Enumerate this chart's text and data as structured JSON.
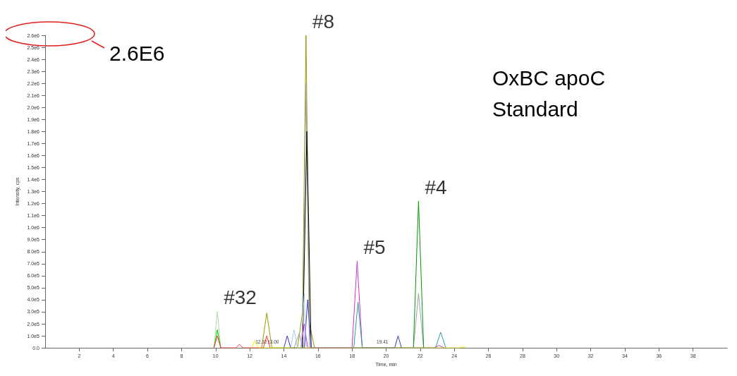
{
  "chart_data": {
    "type": "line",
    "xlabel": "Time, min",
    "ylabel": "Intensity, cps",
    "xlim": [
      0,
      40
    ],
    "xticks": [
      2,
      4,
      6,
      8,
      10,
      12,
      14,
      16,
      18,
      20,
      22,
      24,
      26,
      28,
      30,
      32,
      34,
      36,
      38
    ],
    "ylim": [
      0,
      2600000
    ],
    "yticks": [
      {
        "value": 0,
        "label": "0.0"
      },
      {
        "value": 100000,
        "label": "1.0e5"
      },
      {
        "value": 200000,
        "label": "2.0e5"
      },
      {
        "value": 300000,
        "label": "3.0e5"
      },
      {
        "value": 400000,
        "label": "4.0e5"
      },
      {
        "value": 500000,
        "label": "5.0e5"
      },
      {
        "value": 600000,
        "label": "6.0e5"
      },
      {
        "value": 700000,
        "label": "7.0e5"
      },
      {
        "value": 800000,
        "label": "8.0e5"
      },
      {
        "value": 900000,
        "label": "9.0e5"
      },
      {
        "value": 1000000,
        "label": "1.0e6"
      },
      {
        "value": 1100000,
        "label": "1.1e6"
      },
      {
        "value": 1200000,
        "label": "1.2e6"
      },
      {
        "value": 1300000,
        "label": "1.3e6"
      },
      {
        "value": 1400000,
        "label": "1.4e6"
      },
      {
        "value": 1500000,
        "label": "1.5e6"
      },
      {
        "value": 1600000,
        "label": "1.6e6"
      },
      {
        "value": 1700000,
        "label": "1.7e6"
      },
      {
        "value": 1800000,
        "label": "1.8e6"
      },
      {
        "value": 1900000,
        "label": "1.9e6"
      },
      {
        "value": 2000000,
        "label": "2.0e6"
      },
      {
        "value": 2100000,
        "label": "2.1e6"
      },
      {
        "value": 2200000,
        "label": "2.2e6"
      },
      {
        "value": 2300000,
        "label": "2.3e6"
      },
      {
        "value": 2400000,
        "label": "2.4e6"
      },
      {
        "value": 2500000,
        "label": "2.5e6"
      },
      {
        "value": 2600000,
        "label": "2.6e6"
      }
    ],
    "grid": false,
    "marker": "none",
    "line_style": "solid",
    "series": [
      {
        "color": "#999900",
        "x": [
          12.7,
          13.0,
          13.3,
          14.8,
          15.1,
          15.3,
          15.5,
          15.8
        ],
        "values": [
          0,
          290000,
          0,
          0,
          300000,
          2600000,
          200000,
          0
        ]
      },
      {
        "color": "#a0a0a0",
        "x": [
          14.6,
          14.9,
          15.1,
          15.3,
          15.5,
          21.6,
          21.9,
          22.2
        ],
        "values": [
          0,
          120000,
          0,
          2200000,
          0,
          0,
          450000,
          0
        ]
      },
      {
        "color": "#000000",
        "x": [
          15.1,
          15.35,
          15.6
        ],
        "values": [
          0,
          1800000,
          0
        ]
      },
      {
        "color": "#009900",
        "x": [
          21.6,
          21.9,
          22.2
        ],
        "values": [
          0,
          1220000,
          0
        ]
      },
      {
        "color": "#cc33cc",
        "x": [
          15.0,
          15.2,
          15.4,
          18.0,
          18.3,
          18.6,
          22.8,
          23.1,
          23.4
        ],
        "values": [
          0,
          200000,
          0,
          0,
          720000,
          0,
          0,
          20000,
          0
        ]
      },
      {
        "color": "#339999",
        "x": [
          18.1,
          18.35,
          18.6,
          22.9,
          23.2,
          23.5
        ],
        "values": [
          0,
          380000,
          0,
          0,
          130000,
          0
        ]
      },
      {
        "color": "#aaddaa",
        "x": [
          9.9,
          10.1,
          10.3
        ],
        "values": [
          0,
          300000,
          0
        ]
      },
      {
        "color": "#00cc00",
        "x": [
          9.9,
          10.1,
          10.3
        ],
        "values": [
          0,
          150000,
          0
        ]
      },
      {
        "color": "#ff3333",
        "x": [
          9.9,
          10.1,
          10.3,
          11.2,
          11.4,
          11.6,
          12.8,
          13.0,
          13.2
        ],
        "values": [
          0,
          100000,
          0,
          0,
          30000,
          0,
          0,
          100000,
          0
        ]
      },
      {
        "color": "#3333cc",
        "x": [
          14.0,
          14.2,
          14.4,
          15.2,
          15.4,
          15.6,
          20.5,
          20.7,
          20.9
        ],
        "values": [
          0,
          100000,
          0,
          0,
          400000,
          0,
          0,
          100000,
          0
        ]
      },
      {
        "color": "#aaccee",
        "x": [
          14.4,
          14.6,
          14.8,
          15.0,
          15.2,
          15.3
        ],
        "values": [
          0,
          150000,
          0,
          0,
          450000,
          0
        ]
      },
      {
        "color": "#eeee00",
        "x": [
          12.1,
          12.3,
          12.5,
          24.3,
          24.5,
          24.7
        ],
        "values": [
          0,
          60000,
          0,
          0,
          10000,
          0
        ]
      }
    ],
    "annotations": [
      "2.6E6",
      "OxBC apoC Standard",
      {
        "text": "#8",
        "x": 15.3,
        "y": 2600000
      },
      {
        "text": "#4",
        "x": 21.9,
        "y": 1220000
      },
      {
        "text": "#5",
        "x": 18.3,
        "y": 720000
      },
      {
        "text": "#32",
        "x": 10.1,
        "y": 300000
      },
      {
        "text": "12.32",
        "x": 12.3,
        "y": 0
      },
      {
        "text": "13.00",
        "x": 13.0,
        "y": 0
      },
      {
        "text": "19.41",
        "x": 19.41,
        "y": 0
      }
    ]
  }
}
